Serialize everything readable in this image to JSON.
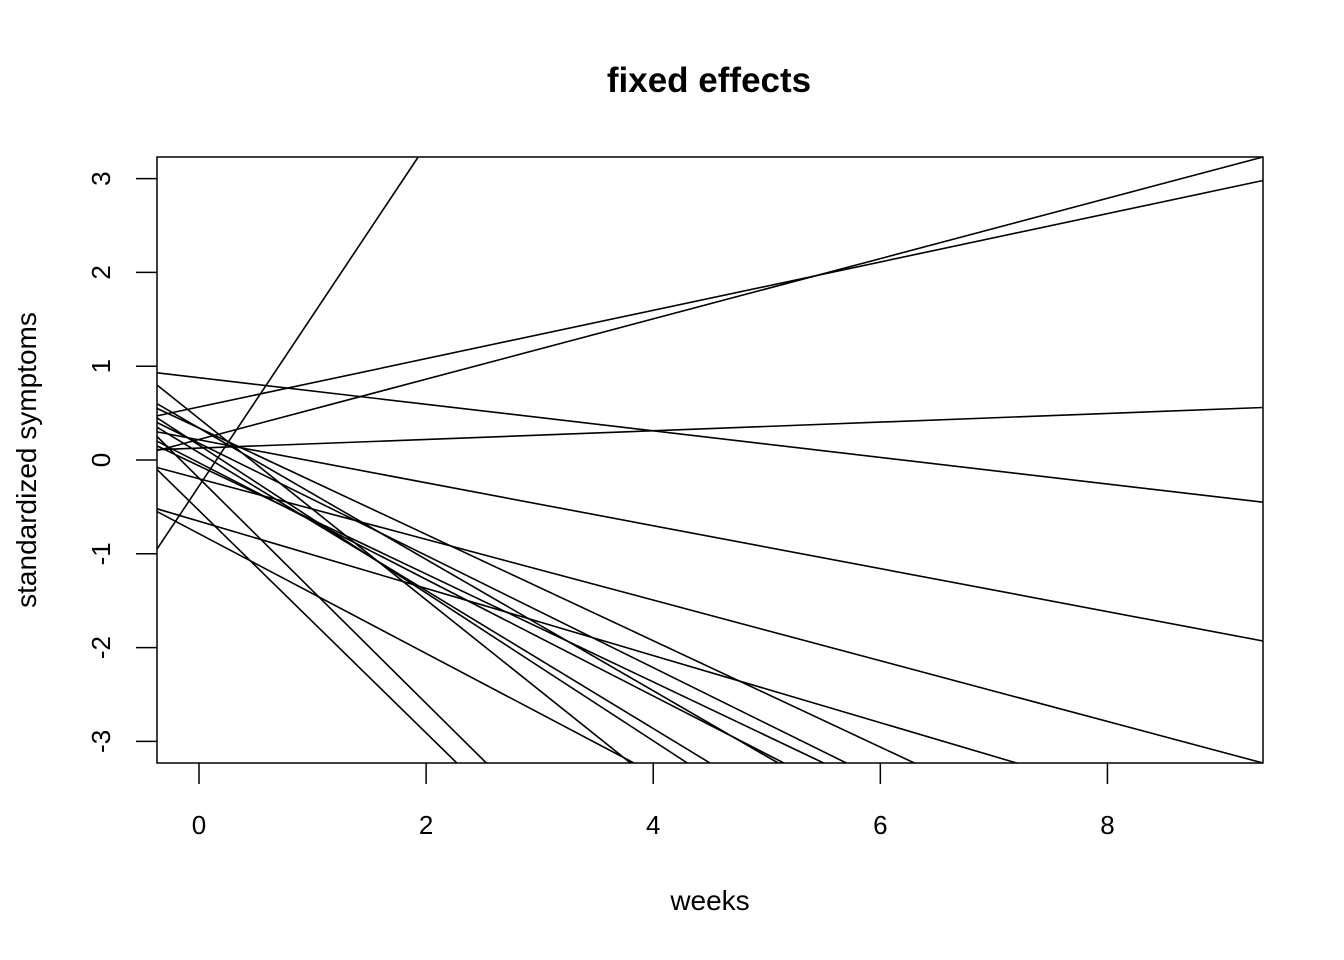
{
  "chart_data": {
    "type": "line",
    "title": "fixed effects",
    "xlabel": "weeks",
    "ylabel": "standardized symptoms",
    "xlim": [
      -0.37,
      9.37
    ],
    "ylim": [
      -3.23,
      3.23
    ],
    "x_ticks": [
      0,
      2,
      4,
      6,
      8
    ],
    "y_ticks": [
      -3,
      -2,
      -1,
      0,
      1,
      2,
      3
    ],
    "x_tick_labels": [
      "0",
      "2",
      "4",
      "6",
      "8"
    ],
    "y_tick_labels": [
      "-3",
      "-2",
      "-1",
      "0",
      "1",
      "2",
      "3"
    ],
    "grid": false,
    "legend": "none",
    "line_color": "#000000",
    "series": [
      {
        "values": [
          {
            "x": -0.37,
            "y": -0.95
          },
          {
            "x": 1.93,
            "y": 3.23
          }
        ]
      },
      {
        "values": [
          {
            "x": -0.37,
            "y": 0.47
          },
          {
            "x": 9.37,
            "y": 2.98
          }
        ]
      },
      {
        "values": [
          {
            "x": -0.37,
            "y": 0.1
          },
          {
            "x": 9.37,
            "y": 3.23
          }
        ]
      },
      {
        "values": [
          {
            "x": -0.37,
            "y": 0.93
          },
          {
            "x": 9.37,
            "y": -0.45
          }
        ]
      },
      {
        "values": [
          {
            "x": -0.37,
            "y": 0.11
          },
          {
            "x": 9.37,
            "y": 0.56
          }
        ]
      },
      {
        "values": [
          {
            "x": -0.37,
            "y": 0.3
          },
          {
            "x": 9.37,
            "y": -1.93
          }
        ]
      },
      {
        "values": [
          {
            "x": -0.37,
            "y": -0.08
          },
          {
            "x": 9.37,
            "y": -3.23
          }
        ]
      },
      {
        "values": [
          {
            "x": -0.37,
            "y": -0.52
          },
          {
            "x": 7.2,
            "y": -3.23
          }
        ]
      },
      {
        "values": [
          {
            "x": -0.37,
            "y": 0.55
          },
          {
            "x": 6.3,
            "y": -3.23
          }
        ]
      },
      {
        "values": [
          {
            "x": -0.37,
            "y": -0.1
          },
          {
            "x": 2.27,
            "y": -3.23
          }
        ]
      },
      {
        "values": [
          {
            "x": -0.37,
            "y": 0.25
          },
          {
            "x": 2.53,
            "y": -3.23
          }
        ]
      },
      {
        "values": [
          {
            "x": -0.37,
            "y": 0.8
          },
          {
            "x": 3.8,
            "y": -3.23
          }
        ]
      },
      {
        "values": [
          {
            "x": -0.37,
            "y": 0.45
          },
          {
            "x": 4.3,
            "y": -3.23
          }
        ]
      },
      {
        "values": [
          {
            "x": -0.37,
            "y": 0.35
          },
          {
            "x": 4.5,
            "y": -3.23
          }
        ]
      },
      {
        "values": [
          {
            "x": -0.37,
            "y": 0.6
          },
          {
            "x": 5.1,
            "y": -3.23
          }
        ]
      },
      {
        "values": [
          {
            "x": -0.37,
            "y": 0.2
          },
          {
            "x": 5.15,
            "y": -3.23
          }
        ]
      },
      {
        "values": [
          {
            "x": -0.37,
            "y": 0.15
          },
          {
            "x": 5.5,
            "y": -3.23
          }
        ]
      },
      {
        "values": [
          {
            "x": -0.37,
            "y": 0.4
          },
          {
            "x": 5.7,
            "y": -3.23
          }
        ]
      },
      {
        "values": [
          {
            "x": -0.37,
            "y": -0.55
          },
          {
            "x": 3.83,
            "y": -3.23
          }
        ]
      }
    ]
  }
}
